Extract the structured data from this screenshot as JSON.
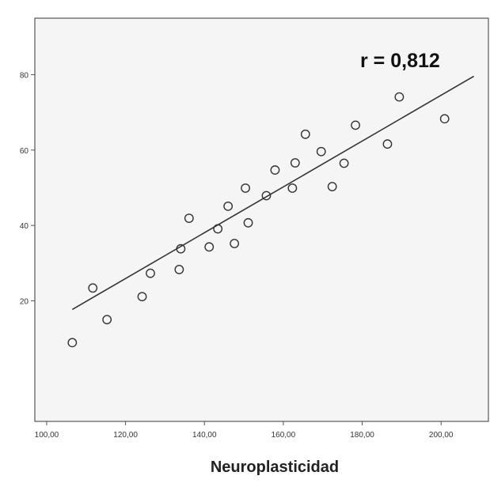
{
  "chart_data": {
    "type": "scatter",
    "title": "",
    "xlabel": "Neuroplasticidad",
    "ylabel": "",
    "annotation": "r = 0,812",
    "xlim": [
      97,
      212
    ],
    "ylim": [
      -12,
      95
    ],
    "x_ticks": [
      100,
      120,
      140,
      160,
      180,
      200
    ],
    "x_tick_labels": [
      "100,00",
      "120,00",
      "140,00",
      "160,00",
      "180,00",
      "200,00"
    ],
    "y_ticks": [
      20,
      40,
      60,
      80
    ],
    "y_tick_labels": [
      "20",
      "40",
      "60",
      "80"
    ],
    "grid": false,
    "points": [
      {
        "x": 106.5,
        "y": 8.9
      },
      {
        "x": 111.7,
        "y": 23.4
      },
      {
        "x": 115.3,
        "y": 15.0
      },
      {
        "x": 124.2,
        "y": 21.1
      },
      {
        "x": 126.3,
        "y": 27.3
      },
      {
        "x": 133.6,
        "y": 28.3
      },
      {
        "x": 134.0,
        "y": 33.8
      },
      {
        "x": 136.1,
        "y": 41.9
      },
      {
        "x": 141.2,
        "y": 34.3
      },
      {
        "x": 143.4,
        "y": 39.1
      },
      {
        "x": 146.0,
        "y": 45.1
      },
      {
        "x": 147.6,
        "y": 35.2
      },
      {
        "x": 150.4,
        "y": 49.9
      },
      {
        "x": 151.1,
        "y": 40.7
      },
      {
        "x": 155.7,
        "y": 47.9
      },
      {
        "x": 157.9,
        "y": 54.7
      },
      {
        "x": 162.3,
        "y": 49.9
      },
      {
        "x": 163.0,
        "y": 56.6
      },
      {
        "x": 165.6,
        "y": 64.2
      },
      {
        "x": 169.6,
        "y": 59.6
      },
      {
        "x": 172.4,
        "y": 50.3
      },
      {
        "x": 175.4,
        "y": 56.5
      },
      {
        "x": 178.3,
        "y": 66.6
      },
      {
        "x": 186.4,
        "y": 61.6
      },
      {
        "x": 189.4,
        "y": 74.1
      },
      {
        "x": 200.9,
        "y": 68.3
      }
    ],
    "fit_line": {
      "x": [
        106.5,
        208.3
      ],
      "y": [
        17.7,
        79.6
      ]
    }
  }
}
